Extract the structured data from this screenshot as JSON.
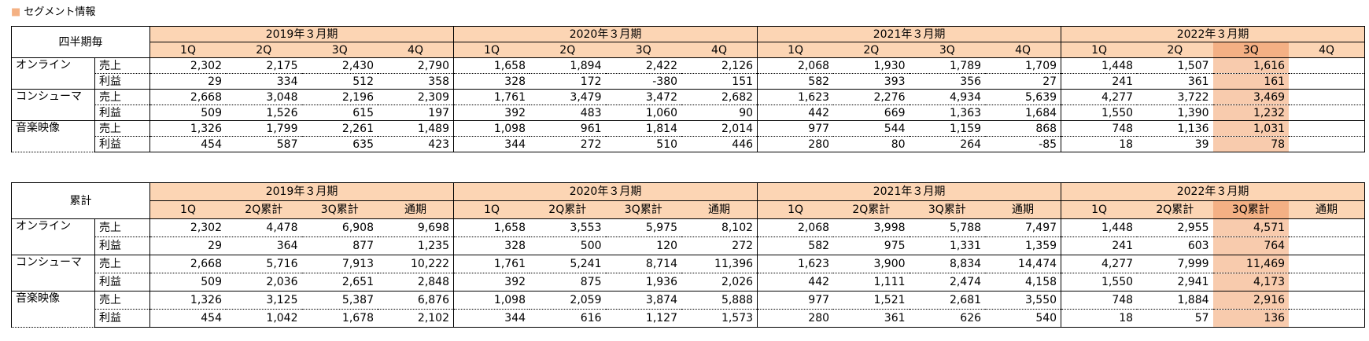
{
  "title": "■ セグメント情報",
  "tables": [
    {
      "header_label": "四半期毎",
      "years": [
        {
          "label": "2019年３月期",
          "columns": [
            "1Q",
            "2Q",
            "3Q",
            "4Q"
          ]
        },
        {
          "label": "2020年３月期",
          "columns": [
            "1Q",
            "2Q",
            "3Q",
            "4Q"
          ]
        },
        {
          "label": "2021年３月期",
          "columns": [
            "1Q",
            "2Q",
            "3Q",
            "4Q"
          ]
        },
        {
          "label": "2022年３月期",
          "columns": [
            "1Q",
            "2Q",
            "3Q",
            "4Q"
          ]
        }
      ],
      "segments": [
        {
          "name": "オンライン",
          "rows": [
            {
              "metric": "売上",
              "values": [
                "2,302",
                "2,175",
                "2,430",
                "2,790",
                "1,658",
                "1,894",
                "2,422",
                "2,126",
                "2,068",
                "1,930",
                "1,789",
                "1,709",
                "1,448",
                "1,507",
                "1,616"
              ]
            },
            {
              "metric": "利益",
              "values": [
                "29",
                "334",
                "512",
                "358",
                "328",
                "172",
                "-380",
                "151",
                "582",
                "393",
                "356",
                "27",
                "241",
                "361",
                "161"
              ]
            }
          ]
        },
        {
          "name": "コンシューマ",
          "rows": [
            {
              "metric": "売上",
              "values": [
                "2,668",
                "3,048",
                "2,196",
                "2,309",
                "1,761",
                "3,479",
                "3,472",
                "2,682",
                "1,623",
                "2,276",
                "4,934",
                "5,639",
                "4,277",
                "3,722",
                "3,469"
              ]
            },
            {
              "metric": "利益",
              "values": [
                "509",
                "1,526",
                "615",
                "197",
                "392",
                "483",
                "1,060",
                "90",
                "442",
                "669",
                "1,363",
                "1,684",
                "1,550",
                "1,390",
                "1,232"
              ]
            }
          ]
        },
        {
          "name": "音楽映像",
          "rows": [
            {
              "metric": "売上",
              "values": [
                "1,326",
                "1,799",
                "2,261",
                "1,489",
                "1,098",
                "961",
                "1,814",
                "2,014",
                "977",
                "544",
                "1,159",
                "868",
                "748",
                "1,136",
                "1,031"
              ]
            },
            {
              "metric": "利益",
              "values": [
                "454",
                "587",
                "635",
                "423",
                "344",
                "272",
                "510",
                "446",
                "280",
                "80",
                "264",
                "-85",
                "18",
                "39",
                "78"
              ]
            }
          ]
        }
      ]
    },
    {
      "header_label": "累計",
      "years": [
        {
          "label": "2019年３月期",
          "columns": [
            "1Q",
            "2Q累計",
            "3Q累計",
            "通期"
          ]
        },
        {
          "label": "2020年３月期",
          "columns": [
            "1Q",
            "2Q累計",
            "3Q累計",
            "通期"
          ]
        },
        {
          "label": "2021年３月期",
          "columns": [
            "1Q",
            "2Q累計",
            "3Q累計",
            "通期"
          ]
        },
        {
          "label": "2022年３月期",
          "columns": [
            "1Q",
            "2Q累計",
            "3Q累計",
            "通期"
          ]
        }
      ],
      "segments": [
        {
          "name": "オンライン",
          "rows": [
            {
              "metric": "売上",
              "values": [
                "2,302",
                "4,478",
                "6,908",
                "9,698",
                "1,658",
                "3,553",
                "5,975",
                "8,102",
                "2,068",
                "3,998",
                "5,788",
                "7,497",
                "1,448",
                "2,955",
                "4,571"
              ]
            },
            {
              "metric": "利益",
              "values": [
                "29",
                "364",
                "877",
                "1,235",
                "328",
                "500",
                "120",
                "272",
                "582",
                "975",
                "1,331",
                "1,359",
                "241",
                "603",
                "764"
              ]
            }
          ]
        },
        {
          "name": "コンシューマ",
          "rows": [
            {
              "metric": "売上",
              "values": [
                "2,668",
                "5,716",
                "7,913",
                "10,222",
                "1,761",
                "5,241",
                "8,714",
                "11,396",
                "1,623",
                "3,900",
                "8,834",
                "14,474",
                "4,277",
                "7,999",
                "11,469"
              ]
            },
            {
              "metric": "利益",
              "values": [
                "509",
                "2,036",
                "2,651",
                "2,848",
                "392",
                "875",
                "1,936",
                "2,026",
                "442",
                "1,111",
                "2,474",
                "4,158",
                "1,550",
                "2,941",
                "4,173"
              ]
            }
          ]
        },
        {
          "name": "音楽映像",
          "rows": [
            {
              "metric": "売上",
              "values": [
                "1,326",
                "3,125",
                "5,387",
                "6,876",
                "1,098",
                "2,059",
                "3,874",
                "5,888",
                "977",
                "1,521",
                "2,681",
                "3,550",
                "748",
                "1,884",
                "2,916"
              ]
            },
            {
              "metric": "利益",
              "values": [
                "454",
                "1,042",
                "1,678",
                "2,102",
                "344",
                "616",
                "1,127",
                "1,573",
                "280",
                "361",
                "626",
                "540",
                "18",
                "57",
                "136"
              ]
            }
          ]
        }
      ]
    }
  ]
}
